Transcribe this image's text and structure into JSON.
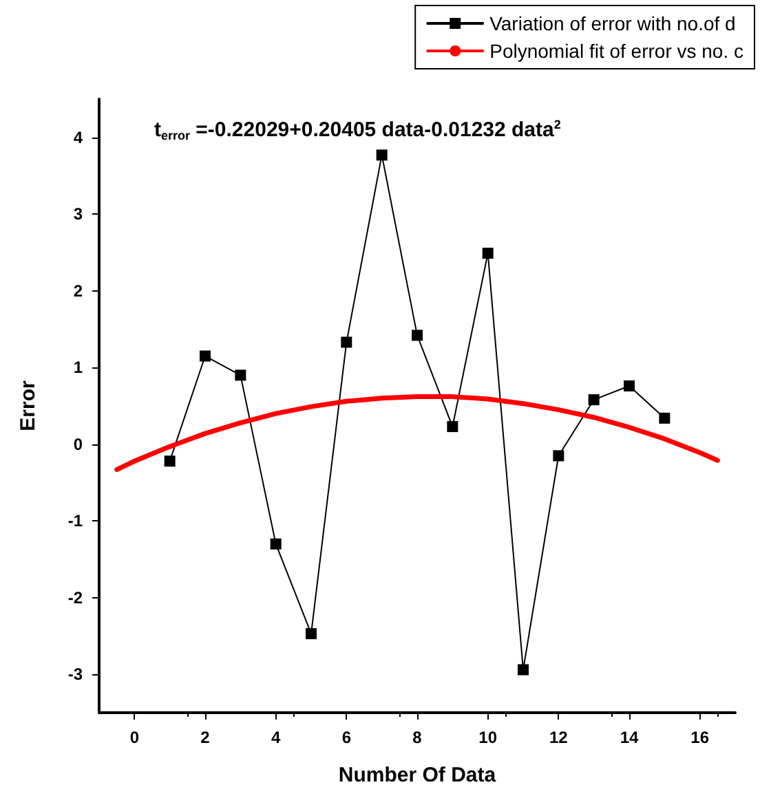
{
  "chart_data": {
    "type": "line",
    "xlabel": "Number Of Data",
    "ylabel": "Error",
    "annotations": [
      "t$_{error}$ =-0.22029+0.20405 data-0.01232 data$^{2}$"
    ],
    "xlim": [
      -1,
      17
    ],
    "xticks": [
      0,
      2,
      4,
      6,
      8,
      10,
      12,
      14,
      16
    ],
    "ylim": [
      -3.5,
      4.5
    ],
    "yticks": [
      -3,
      -2,
      -1,
      0,
      1,
      2,
      3,
      4
    ],
    "grid": false,
    "legend": "top right",
    "marker": "square",
    "line_style": "solid",
    "series": [
      {
        "name": "Variation of error with no.of d",
        "color": "#000000",
        "x": [
          1,
          2,
          3,
          4,
          5,
          6,
          7,
          8,
          9,
          10,
          11,
          12,
          13,
          14,
          15
        ],
        "values": [
          -0.22,
          1.15,
          0.9,
          -1.3,
          -2.47,
          1.33,
          3.77,
          1.42,
          0.23,
          2.49,
          -2.94,
          -0.15,
          0.58,
          0.76,
          0.34
        ]
      },
      {
        "name": "Polynomial fit of error vs no. c",
        "color": "#ff0000",
        "marker": "none",
        "x": [
          -0.5,
          0,
          1,
          2,
          3,
          4,
          5,
          6,
          7,
          8,
          9,
          10,
          11,
          12,
          13,
          14,
          15,
          16,
          16.5
        ],
        "values": [
          -0.33,
          -0.22,
          -0.03,
          0.14,
          0.28,
          0.4,
          0.49,
          0.56,
          0.6,
          0.62,
          0.62,
          0.59,
          0.53,
          0.45,
          0.35,
          0.22,
          0.07,
          -0.11,
          -0.21
        ]
      }
    ]
  }
}
